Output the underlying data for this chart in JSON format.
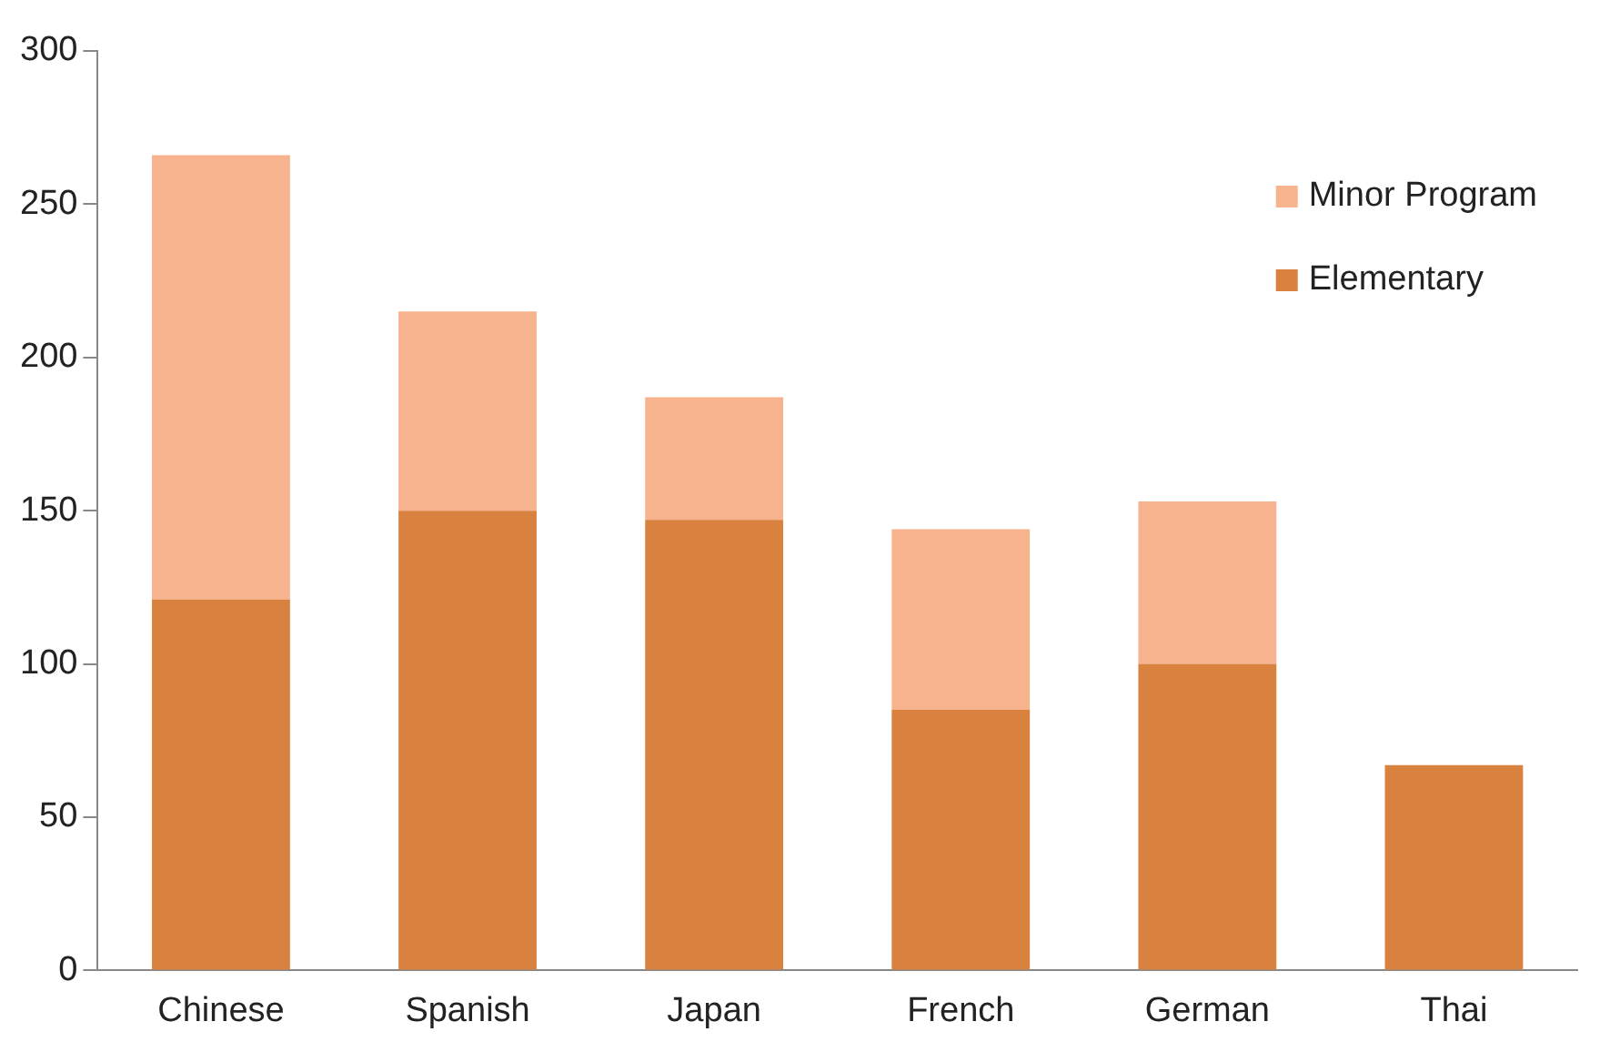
{
  "chart_data": {
    "type": "bar",
    "stacked": true,
    "categories": [
      "Chinese",
      "Spanish",
      "Japan",
      "French",
      "German",
      "Thai"
    ],
    "series": [
      {
        "name": "Elementary",
        "color": "#d9813f",
        "values": [
          121,
          150,
          147,
          85,
          100,
          67
        ]
      },
      {
        "name": "Minor Program",
        "color": "#f7b38d",
        "values": [
          145,
          65,
          40,
          59,
          53,
          0
        ]
      }
    ],
    "ylim": [
      0,
      300
    ],
    "yticks": [
      0,
      50,
      100,
      150,
      200,
      250,
      300
    ],
    "grid": false,
    "legend": "top right"
  }
}
